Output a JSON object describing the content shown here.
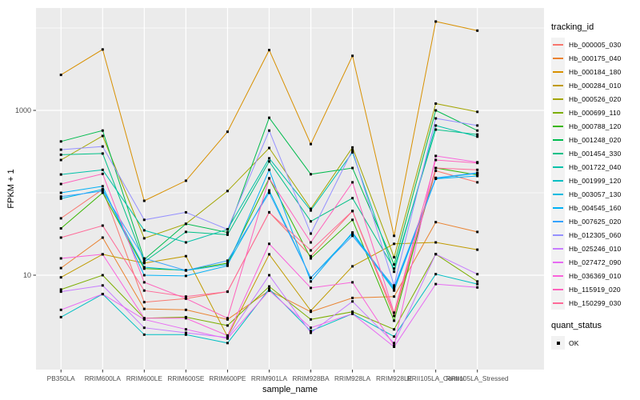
{
  "chart_data": {
    "type": "line",
    "title": "",
    "xlabel": "sample_name",
    "ylabel": "FPKM + 1",
    "y_scale": "log10",
    "grid": true,
    "legend_position": "right",
    "legend_title": "tracking_id",
    "marker": "black-point",
    "y_major_breaks": [
      10,
      1000
    ],
    "y_tick_labels": [
      "10",
      "1000"
    ],
    "y_minor_breaks": [
      100,
      10000
    ],
    "ylim_log10": [
      -0.146,
      4.243
    ],
    "categories": [
      "PB350LA",
      "RRIM600LA",
      "RRIM600LE",
      "RRIM600SE",
      "RRIM600PE",
      "RRIM901LA",
      "RRIM928BA",
      "RRIM928LA",
      "RRIM928LE",
      "RRII105LA_Control",
      "RRII105LA_Stressed"
    ],
    "series": [
      {
        "name": "Hb_000005_030",
        "color": "#F8766D",
        "values": [
          49,
          110,
          4.7,
          5.2,
          6.3,
          58,
          17,
          60,
          3.2,
          185,
          134
        ]
      },
      {
        "name": "Hb_000175_040",
        "color": "#EA8331",
        "values": [
          12.2,
          28.6,
          3.9,
          3.8,
          2.9,
          6.5,
          3.6,
          5.3,
          5.5,
          44,
          33.5
        ]
      },
      {
        "name": "Hb_000184_180",
        "color": "#D89000",
        "values": [
          2700,
          5500,
          80,
          140,
          550,
          5400,
          390,
          4600,
          30,
          12000,
          9300
        ]
      },
      {
        "name": "Hb_000284_010",
        "color": "#C09B00",
        "values": [
          9.4,
          17.9,
          14,
          17,
          1.8,
          17.9,
          3.7,
          12.8,
          24,
          25,
          20.4
        ]
      },
      {
        "name": "Hb_000526_020",
        "color": "#A3A500",
        "values": [
          250,
          490,
          28,
          42,
          105,
          350,
          64,
          355,
          16.5,
          1210,
          960
        ]
      },
      {
        "name": "Hb_000699_110",
        "color": "#7CAE00",
        "values": [
          6.7,
          10,
          3.0,
          3.1,
          2.45,
          7.3,
          2.9,
          3.6,
          2.2,
          18,
          8.4
        ]
      },
      {
        "name": "Hb_000788_120",
        "color": "#39B600",
        "values": [
          37,
          100,
          12,
          11.5,
          14,
          150,
          16,
          47,
          2.8,
          200,
          165
        ]
      },
      {
        "name": "Hb_001248_020",
        "color": "#00BB4E",
        "values": [
          420,
          570,
          15.5,
          42,
          33,
          815,
          168,
          200,
          13.5,
          1000,
          570
        ]
      },
      {
        "name": "Hb_001454_330",
        "color": "#00C087",
        "values": [
          290,
          300,
          14.5,
          33.5,
          31,
          240,
          45,
          86,
          12,
          585,
          510
        ]
      },
      {
        "name": "Hb_001722_040",
        "color": "#00C1A9",
        "values": [
          167,
          190,
          35,
          25,
          36,
          262,
          61,
          310,
          11,
          655,
          480
        ]
      },
      {
        "name": "Hb_001999_120",
        "color": "#00BFC4",
        "values": [
          3.1,
          5.9,
          1.9,
          1.9,
          1.5,
          6.8,
          2.1,
          3.4,
          1.8,
          10.3,
          7.8
        ]
      },
      {
        "name": "Hb_003057_130",
        "color": "#00BAE0",
        "values": [
          85,
          110,
          12.5,
          11.4,
          13.5,
          107,
          9.3,
          32,
          6.5,
          150,
          172
        ]
      },
      {
        "name": "Hb_004545_160",
        "color": "#00B0F6",
        "values": [
          100,
          120,
          10,
          9.8,
          13,
          190,
          8.4,
          33,
          6.8,
          148,
          160
        ]
      },
      {
        "name": "Hb_007625_020",
        "color": "#35A2FF",
        "values": [
          90,
          105,
          16,
          11.4,
          15,
          100,
          9.3,
          30,
          7.2,
          152,
          175
        ]
      },
      {
        "name": "Hb_012305_060",
        "color": "#9590FF",
        "values": [
          334,
          365,
          47,
          58,
          36,
          570,
          32,
          330,
          7.5,
          800,
          655
        ]
      },
      {
        "name": "Hb_025246_010",
        "color": "#C77CFF",
        "values": [
          6.3,
          7.5,
          2.3,
          2.0,
          1.75,
          10,
          2.0,
          4.8,
          1.5,
          18,
          10.3
        ]
      },
      {
        "name": "Hb_027472_090",
        "color": "#E76BF3",
        "values": [
          3.8,
          5.9,
          2.9,
          2.2,
          1.7,
          6.5,
          2.3,
          3.4,
          1.35,
          7.8,
          7.1
        ]
      },
      {
        "name": "Hb_036369_010",
        "color": "#FA62DB",
        "values": [
          16,
          17.9,
          3.0,
          3.0,
          1.85,
          24,
          7.0,
          8.2,
          1.4,
          280,
          235
        ]
      },
      {
        "name": "Hb_115919_020",
        "color": "#FF62BC",
        "values": [
          128,
          170,
          8.2,
          5.2,
          3.0,
          150,
          25,
          134,
          3.5,
          250,
          230
        ]
      },
      {
        "name": "Hb_150299_030",
        "color": "#FF6A98",
        "values": [
          28.6,
          40,
          6.5,
          5.5,
          6.3,
          58,
          20,
          60,
          3.5,
          200,
          190
        ]
      }
    ]
  },
  "quant_legend": {
    "title": "quant_status",
    "entries": [
      {
        "label": "OK",
        "marker": "black-square"
      }
    ]
  },
  "colors": {
    "figure_bg": "#FFFFFF",
    "panel_bg": "#EBEBEB",
    "grid_major": "#FFFFFF",
    "grid_minor": "#FFFFFF",
    "tick_text": "#4D4D4D",
    "tick_mark": "#333333",
    "point": "#000000",
    "legend_key_bg": "#F2F2F2"
  }
}
